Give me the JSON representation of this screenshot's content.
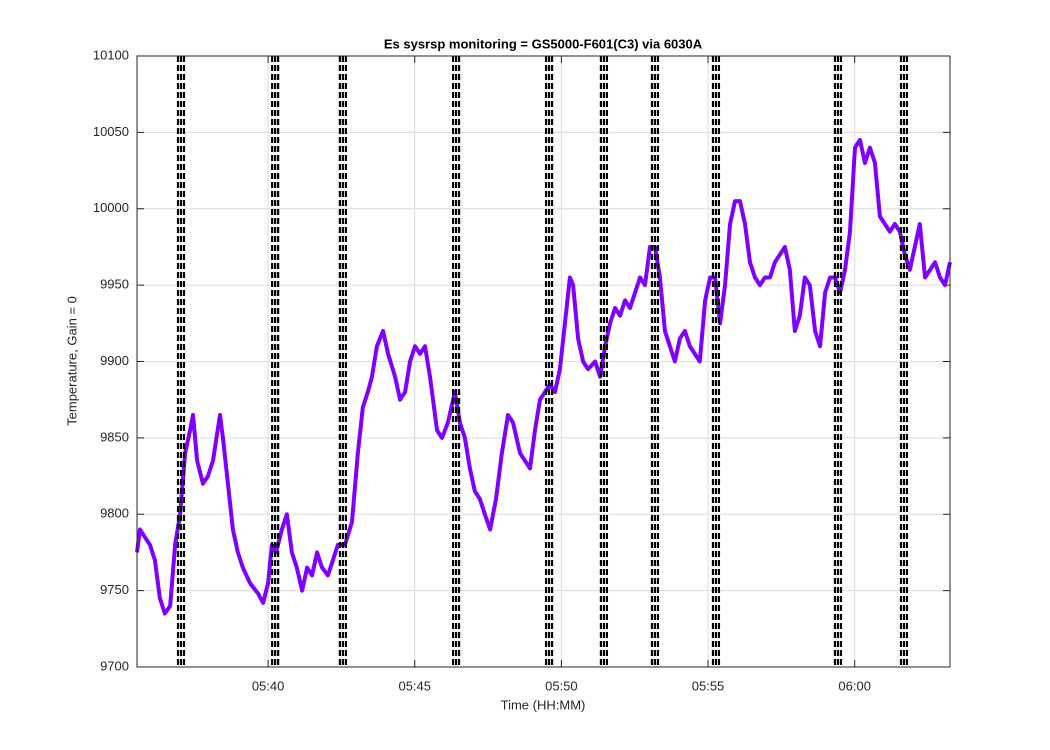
{
  "chart_data": {
    "type": "line",
    "title": "Es sysrsp monitoring = GS5000-F601(C3) via 6030A",
    "xlabel": "Time (HH:MM)",
    "ylabel": "Temperature, Gain = 0",
    "xlim": [
      335.53,
      363.25
    ],
    "ylim": [
      9700,
      10100
    ],
    "xticks": [
      {
        "value": 340,
        "label": "05:40"
      },
      {
        "value": 345,
        "label": "05:45"
      },
      {
        "value": 350,
        "label": "05:50"
      },
      {
        "value": 355,
        "label": "05:55"
      },
      {
        "value": 360,
        "label": "06:00"
      }
    ],
    "yticks": [
      9700,
      9750,
      9800,
      9850,
      9900,
      9950,
      10000,
      10050,
      10100
    ],
    "grid": true,
    "vlines": [
      337.03,
      340.24,
      342.55,
      346.41,
      349.58,
      351.45,
      353.19,
      355.27,
      359.43,
      361.68
    ],
    "vline_color": "#000000",
    "x": [
      335.53,
      335.63,
      335.8,
      335.97,
      336.14,
      336.31,
      336.48,
      336.66,
      336.83,
      337.0,
      337.17,
      337.34,
      337.44,
      337.58,
      337.78,
      337.95,
      338.12,
      338.36,
      338.46,
      338.63,
      338.8,
      338.97,
      339.14,
      339.38,
      339.66,
      339.83,
      340.0,
      340.13,
      340.27,
      340.47,
      340.64,
      340.81,
      340.98,
      341.16,
      341.33,
      341.5,
      341.67,
      341.84,
      342.04,
      342.21,
      342.38,
      342.62,
      342.86,
      343.06,
      343.23,
      343.4,
      343.54,
      343.71,
      343.92,
      344.09,
      344.33,
      344.5,
      344.67,
      344.84,
      345.01,
      345.18,
      345.35,
      345.52,
      345.76,
      345.93,
      346.13,
      346.37,
      346.54,
      346.71,
      346.88,
      347.05,
      347.22,
      347.39,
      347.57,
      347.77,
      347.97,
      348.18,
      348.35,
      348.59,
      348.76,
      348.93,
      349.1,
      349.27,
      349.44,
      349.61,
      349.78,
      349.95,
      350.12,
      350.29,
      350.4,
      350.57,
      350.74,
      350.91,
      351.15,
      351.32,
      351.49,
      351.66,
      351.83,
      352.0,
      352.17,
      352.34,
      352.51,
      352.68,
      352.85,
      353.02,
      353.19,
      353.36,
      353.53,
      353.7,
      353.87,
      354.04,
      354.21,
      354.38,
      354.55,
      354.72,
      354.9,
      355.07,
      355.24,
      355.41,
      355.58,
      355.75,
      355.92,
      356.09,
      356.26,
      356.43,
      356.6,
      356.77,
      356.94,
      357.11,
      357.28,
      357.45,
      357.62,
      357.79,
      357.96,
      358.13,
      358.3,
      358.47,
      358.65,
      358.82,
      358.99,
      359.16,
      359.33,
      359.5,
      359.67,
      359.84,
      360.01,
      360.18,
      360.35,
      360.52,
      360.69,
      360.86,
      361.03,
      361.2,
      361.37,
      361.54,
      361.71,
      361.88,
      362.05,
      362.22,
      362.4,
      362.57,
      362.74,
      362.91,
      363.08,
      363.25
    ],
    "series": [
      {
        "color": "#8000ff",
        "values": [
          9775,
          9790,
          9785,
          9780,
          9770,
          9745,
          9735,
          9740,
          9780,
          9800,
          9840,
          9855,
          9865,
          9835,
          9820,
          9825,
          9835,
          9865,
          9850,
          9820,
          9790,
          9775,
          9765,
          9755,
          9748,
          9742,
          9755,
          9780,
          9775,
          9790,
          9800,
          9775,
          9765,
          9750,
          9765,
          9760,
          9775,
          9765,
          9760,
          9770,
          9780,
          9780,
          9795,
          9840,
          9870,
          9880,
          9890,
          9910,
          9920,
          9905,
          9890,
          9875,
          9880,
          9900,
          9910,
          9905,
          9910,
          9890,
          9855,
          9850,
          9860,
          9880,
          9860,
          9850,
          9830,
          9815,
          9810,
          9800,
          9790,
          9810,
          9840,
          9865,
          9860,
          9840,
          9835,
          9830,
          9855,
          9875,
          9880,
          9885,
          9880,
          9895,
          9925,
          9955,
          9950,
          9915,
          9900,
          9895,
          9900,
          9890,
          9910,
          9925,
          9935,
          9930,
          9940,
          9935,
          9945,
          9955,
          9950,
          9975,
          9975,
          9955,
          9920,
          9910,
          9900,
          9915,
          9920,
          9910,
          9905,
          9900,
          9940,
          9955,
          9955,
          9925,
          9950,
          9990,
          10005,
          10005,
          9990,
          9965,
          9955,
          9950,
          9955,
          9955,
          9965,
          9970,
          9975,
          9960,
          9920,
          9930,
          9955,
          9950,
          9920,
          9910,
          9945,
          9955,
          9955,
          9945,
          9960,
          9985,
          10040,
          10045,
          10030,
          10040,
          10030,
          9995,
          9990,
          9985,
          9990,
          9985,
          9970,
          9960,
          9975,
          9990,
          9955,
          9960,
          9965,
          9955,
          9950,
          9965
        ]
      }
    ]
  }
}
